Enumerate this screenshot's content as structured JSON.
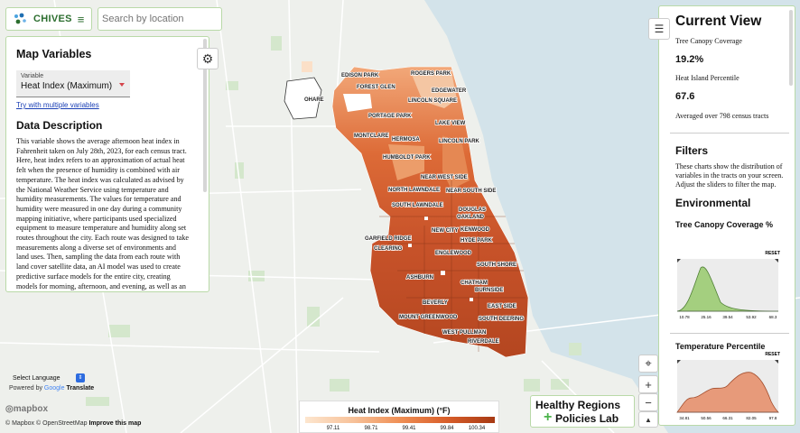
{
  "brand": {
    "name": "CHIVES",
    "menu_glyph": "≡"
  },
  "search": {
    "placeholder": "Search by location"
  },
  "left_panel": {
    "title": "Map Variables",
    "variable_caption": "Variable",
    "variable_value": "Heat Index (Maximum)",
    "multi_link": "Try with multiple variables",
    "desc_title": "Data Description",
    "desc_text": "This variable shows the average afternoon heat index in Fahrenheit taken on July 28th, 2023, for each census tract. Here, heat index refers to an approximation of actual heat felt when the presence of humidity is combined with air temperature. The heat index was calculated as advised by the National Weather Service using temperature and humidity measurements. The values for temperature and humidity were measured in one day during a community mapping initiative, where participants used specialized equipment to measure temperature and humidity along set routes throughout the city. Each route was designed to take measurements along a diverse set of environments and land uses. Then, sampling the data from each route with land cover satellite data, an AI model was used to create predictive surface models for the entire city, creating models for morning, afternoon, and evening, as well as an average model. See here in the model for"
  },
  "right_panel": {
    "title": "Current View",
    "stat1_label": "Tree Canopy Coverage",
    "stat1_value": "19.2%",
    "stat2_label": "Heat Island Percentile",
    "stat2_value": "67.6",
    "note": "Averaged over 798 census tracts",
    "filters_title": "Filters",
    "filters_text": "These charts show the distribution of variables in the tracts on your screen. Adjust the sliders to filter the map.",
    "env_title": "Environmental",
    "chart1_title": "Tree Canopy Coverage %",
    "chart1_reset": "RESET",
    "chart1_ticks": [
      "10.78",
      "25.16",
      "39.54",
      "53.92",
      "68.3"
    ],
    "chart2_title": "Temperature Percentile",
    "chart2_reset": "RESET",
    "chart2_ticks": [
      "34.81",
      "50.56",
      "66.31",
      "82.05",
      "97.8"
    ]
  },
  "legend": {
    "title": "Heat Index (Maximum) (°F)",
    "ticks": [
      "97.11",
      "98.71",
      "99.41",
      "99.84",
      "100.34"
    ]
  },
  "neighborhoods": [
    "EDISON PARK",
    "ROGERS PARK",
    "FOREST GLEN",
    "EDGEWATER",
    "LINCOLN SQUARE",
    "OHARE",
    "PORTAGE PARK",
    "LAKE VIEW",
    "MONTCLARE",
    "HERMOSA",
    "LINCOLN PARK",
    "HUMBOLDT PARK",
    "NEAR WEST SIDE",
    "NORTH LAWNDALE",
    "NEAR SOUTH SIDE",
    "SOUTH LAWNDALE",
    "DOUGLAS",
    "OAKLAND",
    "NEW CITY",
    "KENWOOD",
    "GARFIELD RIDGE",
    "CLEARING",
    "HYDE PARK",
    "ENGLEWOOD",
    "SOUTH SHORE",
    "ASHBURN",
    "CHATHAM",
    "BURNSIDE",
    "BEVERLY",
    "EAST SIDE",
    "MOUNT GREENWOOD",
    "SOUTH DEERING",
    "WEST PULLMAN",
    "RIVERDALE"
  ],
  "hrpl": {
    "line1": "Healthy Regions",
    "line2": "Policies Lab",
    "plus": "+"
  },
  "language": {
    "label": "Select Language",
    "powered_by": "Powered by",
    "google": "Google",
    "translate": "Translate"
  },
  "attribution": {
    "mapbox": "© Mapbox",
    "osm": "© OpenStreetMap",
    "improve": "Improve this map",
    "logo": "mapbox"
  },
  "controls": {
    "locate": "⌖",
    "zoom_in": "+",
    "zoom_out": "−",
    "compass": "▲"
  },
  "colors": {
    "accent": "#b9d9a8",
    "brand": "#2c6e2f",
    "lake": "#d3e3ea",
    "heat_high": "#a73a14",
    "heat_low": "#fde6cf",
    "canopy_chart": "#a4cf7f",
    "temp_chart": "#e79a7a"
  }
}
